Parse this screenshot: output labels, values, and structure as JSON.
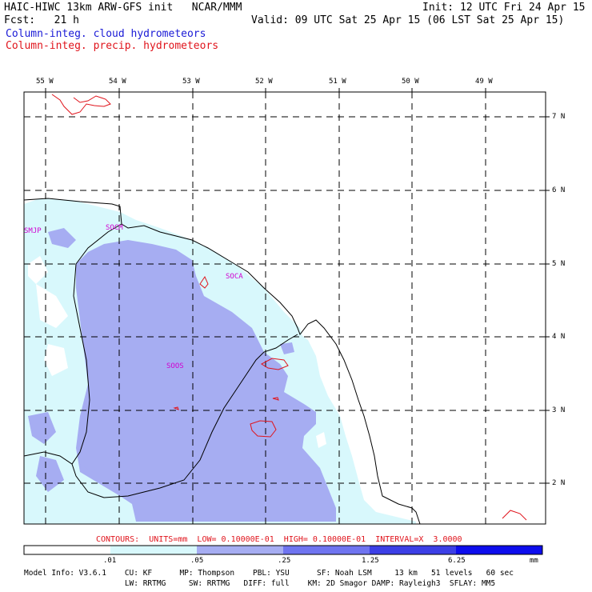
{
  "header": {
    "title": "HAIC-HIWC 13km ARW-GFS init   NCAR/MMM",
    "init": "Init: 12 UTC Fri 24 Apr 15",
    "fcst": "Fcst:   21 h",
    "valid": "Valid: 09 UTC Sat 25 Apr 15 (06 LST Sat 25 Apr 15)",
    "field1": "Column-integ. cloud hydrometeors",
    "field2": "Column-integ. precip. hydrometeors",
    "field1_color": "#1a1ad6",
    "field2_color": "#e0141c"
  },
  "map": {
    "lon_labels": [
      "55 W",
      "54 W",
      "53 W",
      "52 W",
      "51 W",
      "50 W",
      "49 W"
    ],
    "lat_labels": [
      "7 N",
      "6 N",
      "5 N",
      "4 N",
      "3 N",
      "2 N"
    ],
    "stations": [
      "SMJP",
      "SOCM",
      "SOCA",
      "SOOS"
    ],
    "colors": {
      "shade_low": "#d8f8fc",
      "shade_mid": "#a6adf2",
      "coast": "#000000",
      "precip_contour": "#e0141c"
    }
  },
  "footer": {
    "contours": "CONTOURS:  UNITS=mm  LOW= 0.10000E-01  HIGH= 0.10000E-01  INTERVAL=X  3.0000",
    "scale_ticks": [
      ".01",
      ".05",
      ".25",
      "1.25",
      "6.25"
    ],
    "scale_unit": "mm",
    "scale_colors": [
      "#ffffff",
      "#d8f8fc",
      "#a6adf2",
      "#6f74f0",
      "#3c3fe6",
      "#0d0ded"
    ],
    "model_line1": "Model Info: V3.6.1    CU: KF      MP: Thompson    PBL: YSU      SF: Noah LSM     13 km   51 levels   60 sec",
    "model_line2": "                      LW: RRTMG     SW: RRTMG   DIFF: full    KM: 2D Smagor DAMP: Rayleigh3  SFLAY: MM5"
  }
}
